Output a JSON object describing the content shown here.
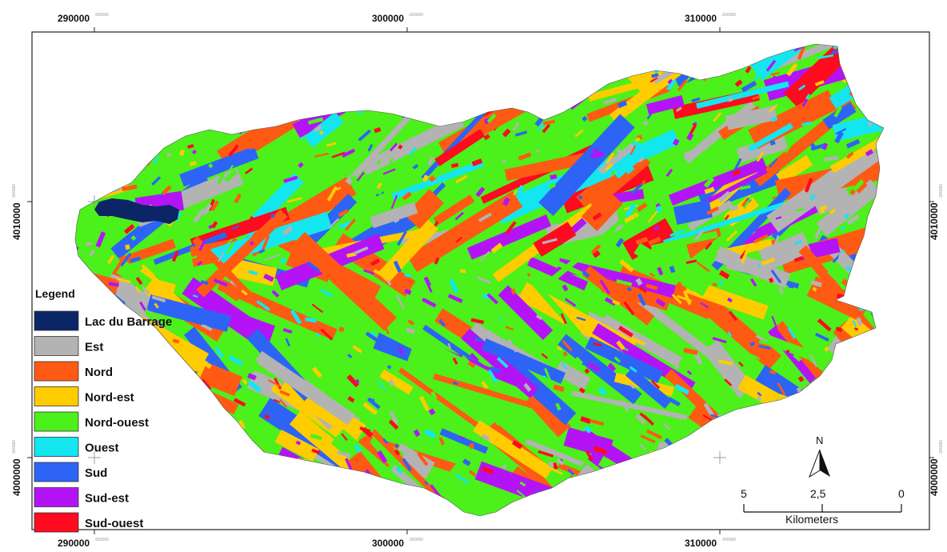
{
  "map": {
    "x_ticks": [
      {
        "label": "290000",
        "suffix": ".000000",
        "value": 290000
      },
      {
        "label": "300000",
        "suffix": ".000000",
        "value": 300000
      },
      {
        "label": "310000",
        "suffix": ".000000",
        "value": 310000
      }
    ],
    "y_ticks": [
      {
        "label": "4010000",
        "suffix": ".000000",
        "value": 4010000
      },
      {
        "label": "4000000",
        "suffix": ".000000",
        "value": 4000000
      }
    ]
  },
  "legend": {
    "title": "Legend",
    "items": [
      {
        "label": "Lac du Barrage",
        "color": "#0b2566"
      },
      {
        "label": "Est",
        "color": "#b3b3b3"
      },
      {
        "label": "Nord",
        "color": "#ff5a14"
      },
      {
        "label": "Nord-est",
        "color": "#ffcc00"
      },
      {
        "label": "Nord-ouest",
        "color": "#4cf01a"
      },
      {
        "label": "Ouest",
        "color": "#14e6f0"
      },
      {
        "label": "Sud",
        "color": "#2d64f5"
      },
      {
        "label": "Sud-est",
        "color": "#b414f5"
      },
      {
        "label": "Sud-ouest",
        "color": "#ff0a1e"
      }
    ]
  },
  "north_arrow": {
    "label": "N"
  },
  "scale_bar": {
    "labels": [
      "5",
      "2,5",
      "0"
    ],
    "unit": "Kilometers"
  }
}
